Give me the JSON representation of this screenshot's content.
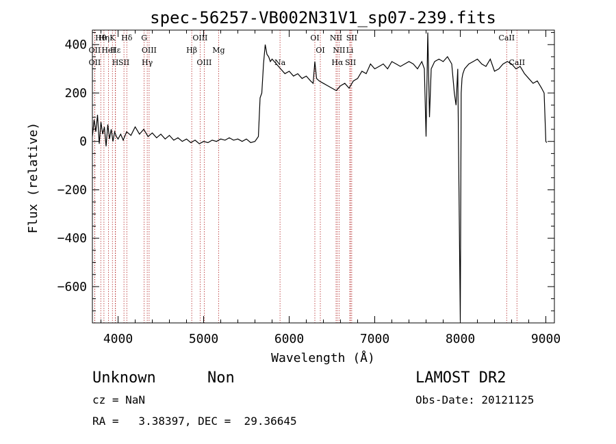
{
  "chart_data": {
    "type": "line",
    "title": "spec-56257-VB002N31V1_sp07-239.fits",
    "xlabel": "Wavelength (Å)",
    "ylabel": "Flux (relative)",
    "xlim": [
      3700,
      9100
    ],
    "ylim": [
      -750,
      460
    ],
    "x_ticks": [
      4000,
      5000,
      6000,
      7000,
      8000,
      9000
    ],
    "x_tick_labels": [
      "4000",
      "5000",
      "6000",
      "7000",
      "8000",
      "9000"
    ],
    "y_ticks": [
      400,
      200,
      0,
      -200,
      -400,
      -600
    ],
    "y_tick_labels": [
      "400",
      "200",
      "0",
      "−200",
      "−400",
      "−600"
    ],
    "grid": false,
    "series": [
      {
        "x": [
          3700,
          3720,
          3740,
          3760,
          3780,
          3800,
          3820,
          3840,
          3860,
          3880,
          3900,
          3920,
          3940,
          3960,
          3980,
          4000,
          4030,
          4060,
          4100,
          4150,
          4200,
          4250,
          4300,
          4350,
          4400,
          4450,
          4500,
          4550,
          4600,
          4650,
          4700,
          4750,
          4800,
          4850,
          4900,
          4950,
          5000,
          5050,
          5100,
          5150,
          5200,
          5250,
          5300,
          5350,
          5400,
          5450,
          5500,
          5550,
          5600,
          5640,
          5660,
          5680,
          5700,
          5720,
          5740,
          5760,
          5780,
          5800,
          5850,
          5900,
          5950,
          6000,
          6050,
          6100,
          6150,
          6200,
          6250,
          6280,
          6300,
          6320,
          6350,
          6400,
          6450,
          6500,
          6550,
          6600,
          6650,
          6700,
          6750,
          6800,
          6850,
          6900,
          6950,
          7000,
          7050,
          7100,
          7150,
          7200,
          7250,
          7300,
          7350,
          7400,
          7450,
          7500,
          7550,
          7580,
          7600,
          7620,
          7640,
          7660,
          7700,
          7750,
          7800,
          7850,
          7900,
          7930,
          7950,
          7970,
          8000,
          8010,
          8020,
          8030,
          8050,
          8100,
          8150,
          8200,
          8250,
          8300,
          8350,
          8400,
          8450,
          8500,
          8550,
          8600,
          8650,
          8700,
          8750,
          8800,
          8850,
          8900,
          8950,
          8980,
          9000,
          9010
        ],
        "y": [
          20,
          90,
          40,
          110,
          -10,
          80,
          30,
          60,
          -20,
          70,
          10,
          50,
          0,
          40,
          20,
          10,
          30,
          5,
          40,
          25,
          60,
          30,
          50,
          20,
          35,
          15,
          30,
          10,
          25,
          5,
          15,
          0,
          10,
          -5,
          5,
          -10,
          0,
          -5,
          5,
          0,
          10,
          5,
          15,
          5,
          10,
          0,
          10,
          -5,
          0,
          20,
          180,
          200,
          320,
          400,
          360,
          350,
          330,
          340,
          320,
          300,
          280,
          290,
          270,
          280,
          260,
          270,
          250,
          240,
          330,
          260,
          250,
          240,
          230,
          220,
          210,
          230,
          240,
          220,
          250,
          260,
          290,
          280,
          320,
          300,
          310,
          320,
          300,
          330,
          320,
          310,
          320,
          330,
          320,
          300,
          330,
          300,
          20,
          450,
          100,
          300,
          330,
          340,
          330,
          350,
          320,
          200,
          150,
          300,
          -740,
          200,
          260,
          280,
          300,
          320,
          330,
          340,
          320,
          310,
          340,
          290,
          300,
          320,
          330,
          320,
          300,
          310,
          280,
          260,
          240,
          250,
          220,
          200,
          0,
          -5
        ]
      }
    ],
    "spectral_lines": [
      {
        "label": "Hθ",
        "x": 3798
      },
      {
        "label": "OII",
        "x": 3727
      },
      {
        "label": "OII",
        "x": 3727
      },
      {
        "label": "K",
        "x": 3934
      },
      {
        "label": "Hε",
        "x": 3970
      },
      {
        "label": "H",
        "x": 3968
      },
      {
        "label": "Hη",
        "x": 3835
      },
      {
        "label": "HeI",
        "x": 3889
      },
      {
        "label": "SII",
        "x": 4069
      },
      {
        "label": "Hδ",
        "x": 4102
      },
      {
        "label": "OIII",
        "x": 4363
      },
      {
        "label": "Hγ",
        "x": 4341
      },
      {
        "label": "G",
        "x": 4305
      },
      {
        "label": "Hβ",
        "x": 4861
      },
      {
        "label": "OIII",
        "x": 5007
      },
      {
        "label": "OIII",
        "x": 4959
      },
      {
        "label": "Mg",
        "x": 5175
      },
      {
        "label": "Na",
        "x": 5893
      },
      {
        "label": "OI",
        "x": 6300
      },
      {
        "label": "OI",
        "x": 6364
      },
      {
        "label": "Hα",
        "x": 6563
      },
      {
        "label": "NII",
        "x": 6548
      },
      {
        "label": "NII",
        "x": 6583
      },
      {
        "label": "SII",
        "x": 6717
      },
      {
        "label": "SII",
        "x": 6731
      },
      {
        "label": "Li",
        "x": 6708
      },
      {
        "label": "CaII",
        "x": 8662
      },
      {
        "label": "CaII",
        "x": 8542
      }
    ]
  },
  "footer": {
    "class_label": "Unknown",
    "subclass_label": "Non",
    "survey": "LAMOST DR2",
    "cz": "cz = NaN",
    "obs_date": "Obs-Date: 20121125",
    "radec": "RA =   3.38397, DEC =  29.36645"
  }
}
